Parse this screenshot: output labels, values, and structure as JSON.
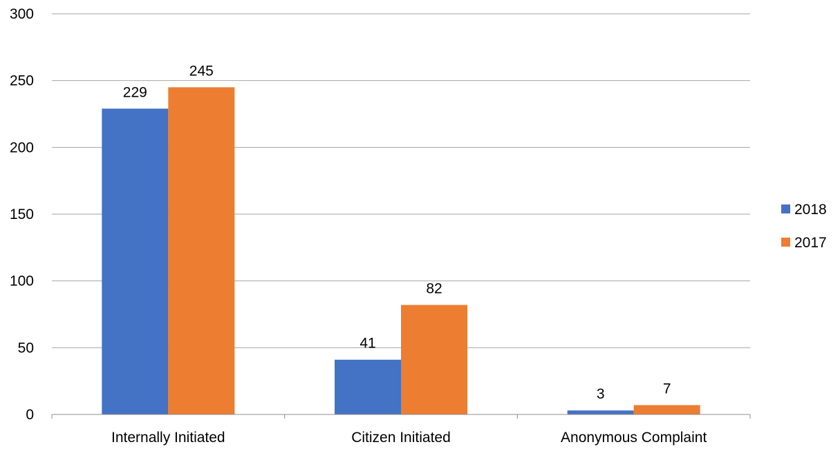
{
  "chart_data": {
    "type": "bar",
    "categories": [
      "Internally Initiated",
      "Citizen Initiated",
      "Anonymous Complaint"
    ],
    "series": [
      {
        "name": "2018",
        "values": [
          229,
          41,
          3
        ],
        "color": "#4472c4"
      },
      {
        "name": "2017",
        "values": [
          245,
          82,
          7
        ],
        "color": "#ed7d31"
      }
    ],
    "y_ticks": [
      0,
      50,
      100,
      150,
      200,
      250,
      300
    ],
    "ylim": [
      0,
      300
    ],
    "grid": true,
    "legend_position": "right",
    "data_labels": true
  }
}
